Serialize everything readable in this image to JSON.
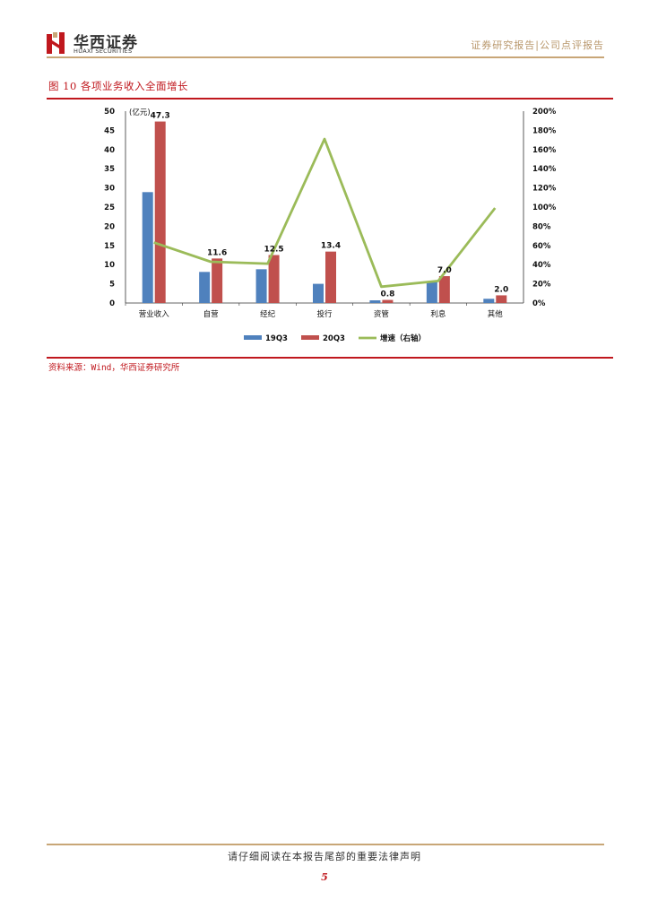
{
  "header": {
    "logo_cn": "华西证券",
    "logo_en": "HUAXI SECURITIES",
    "report_type": "证券研究报告|公司点评报告"
  },
  "figure": {
    "title": "图 10   各项业务收入全面增长",
    "source": "资料来源：Wind，华西证券研究所"
  },
  "chart_data": {
    "type": "bar",
    "unit_label": "(亿元)",
    "categories": [
      "营业收入",
      "自营",
      "经纪",
      "投行",
      "资管",
      "利息",
      "其他"
    ],
    "series": [
      {
        "name": "19Q3",
        "type": "bar",
        "axis": "left",
        "color": "#4f81bd",
        "values": [
          28.9,
          8.1,
          8.8,
          5.0,
          0.7,
          5.5,
          1.1
        ]
      },
      {
        "name": "20Q3",
        "type": "bar",
        "axis": "left",
        "color": "#c0504d",
        "values": [
          47.3,
          11.6,
          12.5,
          13.4,
          0.8,
          7.0,
          2.0
        ],
        "data_labels": [
          "47.3",
          "11.6",
          "12.5",
          "13.4",
          "0.8",
          "7.0",
          "2.0"
        ]
      },
      {
        "name": "增速（右轴）",
        "type": "line",
        "axis": "right",
        "color": "#9bbb59",
        "values": [
          0.63,
          0.43,
          0.41,
          1.71,
          0.17,
          0.23,
          0.99
        ]
      }
    ],
    "y_left": {
      "min": 0,
      "max": 50,
      "ticks": [
        "0",
        "5",
        "10",
        "15",
        "20",
        "25",
        "30",
        "35",
        "40",
        "45",
        "50"
      ]
    },
    "y_right": {
      "min": 0,
      "max": 2,
      "ticks": [
        "0%",
        "20%",
        "40%",
        "60%",
        "80%",
        "100%",
        "120%",
        "140%",
        "160%",
        "180%",
        "200%"
      ]
    },
    "legend_position": "bottom",
    "grid": false
  },
  "footer": {
    "disclaimer": "请仔细阅读在本报告尾部的重要法律声明",
    "page_number": "5"
  }
}
